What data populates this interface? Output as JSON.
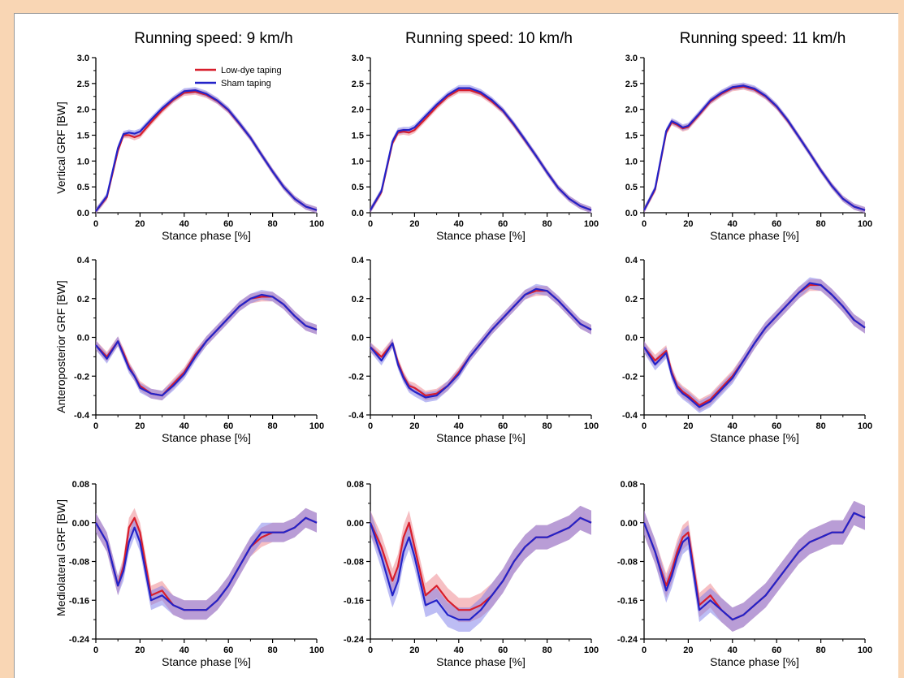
{
  "colors": {
    "low_dye": "#d81e2c",
    "low_dye_band": "#ee7f88",
    "sham": "#2323c8",
    "sham_band": "#7b7bea",
    "page_background": "#f9d6b4"
  },
  "legend": {
    "placement": "top-right of first panel",
    "entries": [
      "Low-dye taping",
      "Sham taping"
    ]
  },
  "column_titles": [
    "Running speed: 9 km/h",
    "Running speed: 10 km/h",
    "Running speed: 11 km/h"
  ],
  "row_ylabels": [
    "Vertical GRF [BW]",
    "Anteroposterior GRF [BW]",
    "Mediolateral GRF [BW]"
  ],
  "xlabel": "Stance phase [%]",
  "chart_data": {
    "type": "line",
    "x": [
      0,
      5,
      10,
      12.5,
      15,
      17.5,
      20,
      25,
      30,
      35,
      40,
      45,
      50,
      55,
      60,
      65,
      70,
      75,
      80,
      85,
      90,
      95,
      100
    ],
    "xlim": [
      0,
      100
    ],
    "xticks": [
      "0",
      "20",
      "40",
      "60",
      "80",
      "100"
    ],
    "grid": false,
    "rows": [
      {
        "name": "Vertical GRF",
        "ylim": [
          0,
          3.0
        ],
        "yticks": [
          "0.0",
          "0.5",
          "1.0",
          "1.5",
          "2.0",
          "2.5",
          "3.0"
        ],
        "panels": [
          {
            "speed": "9 km/h",
            "band": 0.06,
            "series": [
              {
                "name": "Low-dye taping",
                "values": [
                  0.03,
                  0.3,
                  1.2,
                  1.5,
                  1.5,
                  1.46,
                  1.5,
                  1.75,
                  1.98,
                  2.18,
                  2.32,
                  2.34,
                  2.28,
                  2.16,
                  1.98,
                  1.72,
                  1.45,
                  1.12,
                  0.8,
                  0.5,
                  0.27,
                  0.12,
                  0.05
                ]
              },
              {
                "name": "Sham taping",
                "values": [
                  0.03,
                  0.32,
                  1.25,
                  1.52,
                  1.55,
                  1.53,
                  1.57,
                  1.8,
                  2.02,
                  2.2,
                  2.35,
                  2.37,
                  2.3,
                  2.17,
                  1.99,
                  1.73,
                  1.45,
                  1.12,
                  0.8,
                  0.5,
                  0.27,
                  0.12,
                  0.05
                ]
              }
            ]
          },
          {
            "speed": "10 km/h",
            "band": 0.06,
            "series": [
              {
                "name": "Low-dye taping",
                "values": [
                  0.05,
                  0.4,
                  1.35,
                  1.55,
                  1.57,
                  1.55,
                  1.6,
                  1.82,
                  2.05,
                  2.25,
                  2.37,
                  2.37,
                  2.3,
                  2.15,
                  1.97,
                  1.7,
                  1.4,
                  1.1,
                  0.78,
                  0.48,
                  0.27,
                  0.13,
                  0.05
                ]
              },
              {
                "name": "Sham taping",
                "values": [
                  0.05,
                  0.42,
                  1.38,
                  1.58,
                  1.6,
                  1.6,
                  1.65,
                  1.87,
                  2.09,
                  2.28,
                  2.41,
                  2.41,
                  2.33,
                  2.18,
                  1.98,
                  1.71,
                  1.41,
                  1.1,
                  0.78,
                  0.48,
                  0.27,
                  0.13,
                  0.05
                ]
              }
            ]
          },
          {
            "speed": "11 km/h",
            "band": 0.06,
            "series": [
              {
                "name": "Low-dye taping",
                "values": [
                  0.05,
                  0.45,
                  1.55,
                  1.75,
                  1.7,
                  1.63,
                  1.66,
                  1.9,
                  2.15,
                  2.3,
                  2.41,
                  2.44,
                  2.38,
                  2.25,
                  2.05,
                  1.78,
                  1.47,
                  1.15,
                  0.82,
                  0.52,
                  0.27,
                  0.12,
                  0.05
                ]
              },
              {
                "name": "Sham taping",
                "values": [
                  0.05,
                  0.47,
                  1.58,
                  1.77,
                  1.72,
                  1.65,
                  1.68,
                  1.92,
                  2.17,
                  2.32,
                  2.43,
                  2.46,
                  2.4,
                  2.26,
                  2.06,
                  1.79,
                  1.47,
                  1.15,
                  0.82,
                  0.52,
                  0.27,
                  0.12,
                  0.05
                ]
              }
            ]
          }
        ]
      },
      {
        "name": "Anteroposterior GRF",
        "ylim": [
          -0.4,
          0.4
        ],
        "yticks": [
          "-0.4",
          "-0.2",
          "0.0",
          "0.2",
          "0.4"
        ],
        "panels": [
          {
            "speed": "9 km/h",
            "band": 0.025,
            "series": [
              {
                "name": "Low-dye taping",
                "values": [
                  -0.04,
                  -0.1,
                  -0.02,
                  -0.08,
                  -0.15,
                  -0.2,
                  -0.25,
                  -0.29,
                  -0.3,
                  -0.24,
                  -0.18,
                  -0.09,
                  -0.02,
                  0.04,
                  0.1,
                  0.16,
                  0.2,
                  0.21,
                  0.21,
                  0.17,
                  0.11,
                  0.06,
                  0.04
                ]
              },
              {
                "name": "Sham taping",
                "values": [
                  -0.04,
                  -0.11,
                  -0.02,
                  -0.09,
                  -0.16,
                  -0.2,
                  -0.26,
                  -0.29,
                  -0.3,
                  -0.25,
                  -0.19,
                  -0.1,
                  -0.02,
                  0.04,
                  0.1,
                  0.16,
                  0.2,
                  0.22,
                  0.21,
                  0.17,
                  0.11,
                  0.06,
                  0.04
                ]
              }
            ]
          },
          {
            "speed": "10 km/h",
            "band": 0.025,
            "series": [
              {
                "name": "Low-dye taping",
                "values": [
                  -0.05,
                  -0.1,
                  -0.03,
                  -0.13,
                  -0.2,
                  -0.25,
                  -0.26,
                  -0.3,
                  -0.29,
                  -0.25,
                  -0.18,
                  -0.1,
                  -0.03,
                  0.04,
                  0.1,
                  0.16,
                  0.22,
                  0.24,
                  0.24,
                  0.19,
                  0.13,
                  0.07,
                  0.04
                ]
              },
              {
                "name": "Sham taping",
                "values": [
                  -0.05,
                  -0.12,
                  -0.03,
                  -0.14,
                  -0.21,
                  -0.26,
                  -0.28,
                  -0.31,
                  -0.3,
                  -0.25,
                  -0.19,
                  -0.1,
                  -0.03,
                  0.04,
                  0.1,
                  0.16,
                  0.22,
                  0.25,
                  0.24,
                  0.19,
                  0.13,
                  0.07,
                  0.04
                ]
              }
            ]
          },
          {
            "speed": "11 km/h",
            "band": 0.03,
            "series": [
              {
                "name": "Low-dye taping",
                "values": [
                  -0.05,
                  -0.12,
                  -0.07,
                  -0.18,
                  -0.25,
                  -0.28,
                  -0.3,
                  -0.35,
                  -0.32,
                  -0.26,
                  -0.2,
                  -0.12,
                  -0.03,
                  0.05,
                  0.11,
                  0.17,
                  0.23,
                  0.27,
                  0.27,
                  0.22,
                  0.16,
                  0.09,
                  0.05
                ]
              },
              {
                "name": "Sham taping",
                "values": [
                  -0.05,
                  -0.14,
                  -0.08,
                  -0.19,
                  -0.26,
                  -0.29,
                  -0.31,
                  -0.36,
                  -0.33,
                  -0.27,
                  -0.21,
                  -0.12,
                  -0.03,
                  0.05,
                  0.11,
                  0.17,
                  0.23,
                  0.28,
                  0.27,
                  0.22,
                  0.16,
                  0.09,
                  0.05
                ]
              }
            ]
          }
        ]
      },
      {
        "name": "Mediolateral GRF",
        "ylim": [
          -0.24,
          0.08
        ],
        "yticks": [
          "-0.24",
          "-0.16",
          "-0.08",
          "0.00",
          "0.08"
        ],
        "panels": [
          {
            "speed": "9 km/h",
            "band": 0.02,
            "series": [
              {
                "name": "Low-dye taping",
                "values": [
                  0.0,
                  -0.04,
                  -0.13,
                  -0.09,
                  -0.01,
                  0.01,
                  -0.02,
                  -0.15,
                  -0.14,
                  -0.17,
                  -0.18,
                  -0.18,
                  -0.18,
                  -0.16,
                  -0.13,
                  -0.09,
                  -0.05,
                  -0.03,
                  -0.02,
                  -0.02,
                  -0.01,
                  0.01,
                  0.0
                ]
              },
              {
                "name": "Sham taping",
                "values": [
                  0.0,
                  -0.04,
                  -0.13,
                  -0.1,
                  -0.04,
                  -0.01,
                  -0.04,
                  -0.16,
                  -0.15,
                  -0.17,
                  -0.18,
                  -0.18,
                  -0.18,
                  -0.16,
                  -0.13,
                  -0.09,
                  -0.05,
                  -0.02,
                  -0.02,
                  -0.02,
                  -0.01,
                  0.01,
                  0.0
                ]
              }
            ]
          },
          {
            "speed": "10 km/h",
            "band": 0.025,
            "series": [
              {
                "name": "Low-dye taping",
                "values": [
                  0.0,
                  -0.05,
                  -0.12,
                  -0.09,
                  -0.03,
                  0.0,
                  -0.05,
                  -0.15,
                  -0.13,
                  -0.16,
                  -0.18,
                  -0.18,
                  -0.17,
                  -0.15,
                  -0.12,
                  -0.08,
                  -0.05,
                  -0.03,
                  -0.03,
                  -0.02,
                  -0.01,
                  0.01,
                  0.0
                ]
              },
              {
                "name": "Sham taping",
                "values": [
                  0.0,
                  -0.07,
                  -0.15,
                  -0.12,
                  -0.06,
                  -0.03,
                  -0.07,
                  -0.17,
                  -0.16,
                  -0.19,
                  -0.2,
                  -0.2,
                  -0.18,
                  -0.15,
                  -0.12,
                  -0.08,
                  -0.05,
                  -0.03,
                  -0.03,
                  -0.02,
                  -0.01,
                  0.01,
                  0.0
                ]
              }
            ]
          },
          {
            "speed": "11 km/h",
            "band": 0.025,
            "series": [
              {
                "name": "Low-dye taping",
                "values": [
                  0.0,
                  -0.06,
                  -0.13,
                  -0.1,
                  -0.06,
                  -0.03,
                  -0.02,
                  -0.17,
                  -0.15,
                  -0.18,
                  -0.2,
                  -0.19,
                  -0.17,
                  -0.15,
                  -0.12,
                  -0.09,
                  -0.06,
                  -0.04,
                  -0.03,
                  -0.02,
                  -0.02,
                  0.02,
                  0.01
                ]
              },
              {
                "name": "Sham taping",
                "values": [
                  0.0,
                  -0.06,
                  -0.14,
                  -0.11,
                  -0.07,
                  -0.04,
                  -0.03,
                  -0.18,
                  -0.16,
                  -0.18,
                  -0.2,
                  -0.19,
                  -0.17,
                  -0.15,
                  -0.12,
                  -0.09,
                  -0.06,
                  -0.04,
                  -0.03,
                  -0.02,
                  -0.02,
                  0.02,
                  0.01
                ]
              }
            ]
          }
        ]
      }
    ]
  }
}
